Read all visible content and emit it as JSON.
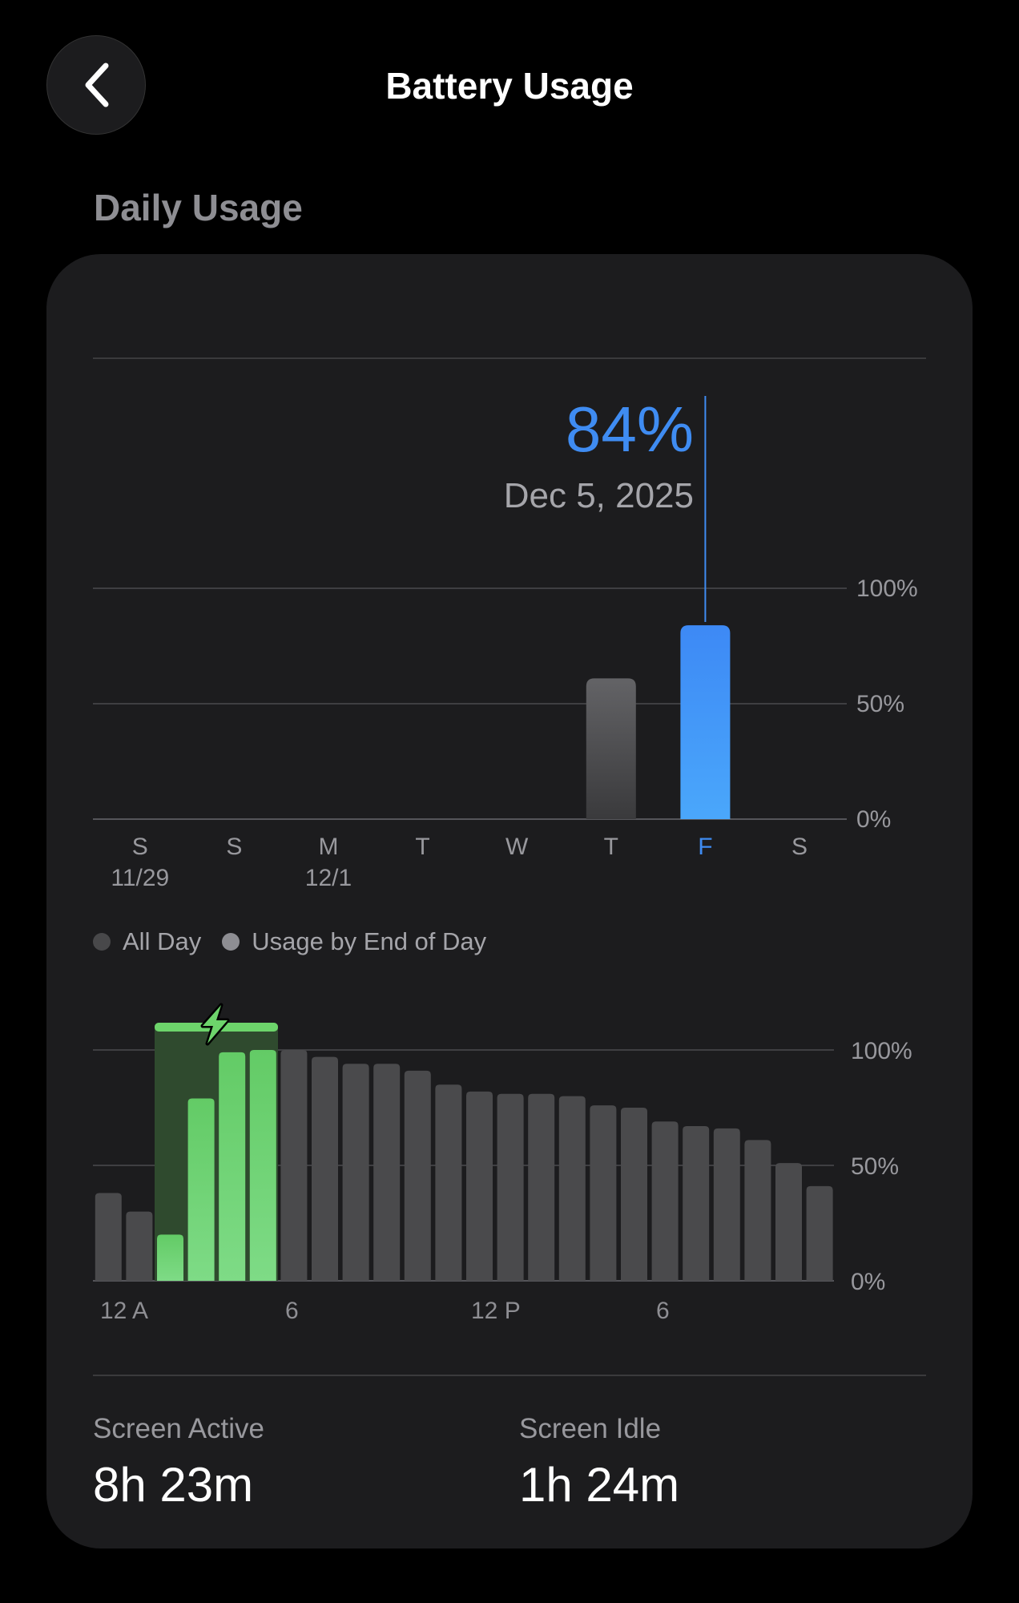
{
  "header": {
    "title": "Battery Usage",
    "back_icon": "chevron-left-icon"
  },
  "section": {
    "title": "Daily Usage"
  },
  "daily_chart": {
    "selected_value": "84%",
    "selected_date": "Dec 5, 2025",
    "y_ticks": [
      "100%",
      "50%",
      "0%"
    ],
    "days": [
      {
        "label": "S",
        "date": "11/29"
      },
      {
        "label": "S",
        "date": ""
      },
      {
        "label": "M",
        "date": "12/1"
      },
      {
        "label": "T",
        "date": ""
      },
      {
        "label": "W",
        "date": ""
      },
      {
        "label": "T",
        "date": ""
      },
      {
        "label": "F",
        "date": ""
      },
      {
        "label": "S",
        "date": ""
      }
    ]
  },
  "legend": {
    "all_day": "All Day",
    "end_of_day": "Usage by End of Day"
  },
  "hourly_chart": {
    "x_ticks": [
      "12 A",
      "6",
      "12 P",
      "6"
    ],
    "y_ticks": [
      "100%",
      "50%",
      "0%"
    ],
    "charging_icon": "lightning-bolt-icon"
  },
  "stats": {
    "screen_active_label": "Screen Active",
    "screen_active_value": "8h 23m",
    "screen_idle_label": "Screen Idle",
    "screen_idle_value": "1h 24m"
  },
  "colors": {
    "background": "#000000",
    "card": "#1c1c1e",
    "accent_blue": "#3f8cf2",
    "charging_green": "#6dd46b",
    "bar_gray": "#4a4a4c"
  },
  "chart_data": [
    {
      "type": "bar",
      "categories": [
        "S 11/29",
        "S",
        "M 12/1",
        "T",
        "W",
        "T",
        "F",
        "S"
      ],
      "values": [
        0,
        0,
        0,
        0,
        0,
        61,
        84,
        0
      ],
      "selected_index": 6,
      "ylim": [
        0,
        100
      ]
    },
    {
      "type": "bar",
      "categories": [
        "0",
        "1",
        "2",
        "3",
        "4",
        "5",
        "6",
        "7",
        "8",
        "9",
        "10",
        "11",
        "12",
        "13",
        "14",
        "15",
        "16",
        "17",
        "18",
        "19",
        "20",
        "21",
        "22",
        "23"
      ],
      "values": [
        38,
        30,
        20,
        79,
        99,
        100,
        100,
        97,
        94,
        94,
        91,
        85,
        82,
        81,
        81,
        80,
        76,
        75,
        69,
        67,
        66,
        61,
        51,
        41
      ],
      "charging_hours": [
        2,
        3,
        4,
        5
      ],
      "ylim": [
        0,
        100
      ]
    }
  ]
}
